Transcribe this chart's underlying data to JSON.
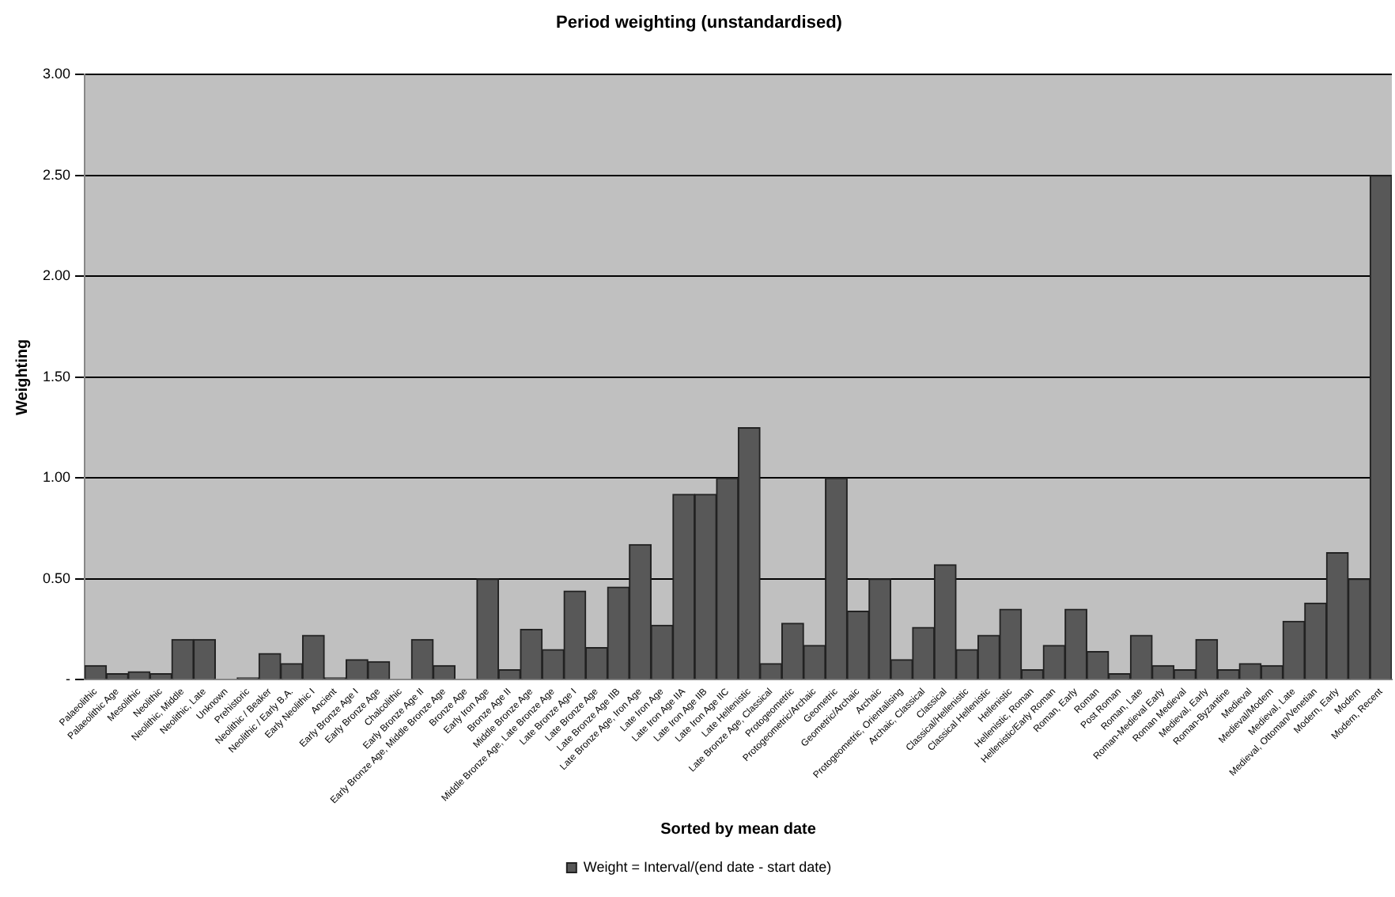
{
  "chart_data": {
    "type": "bar",
    "title": "Period weighting (unstandardised)",
    "xlabel": "Sorted by mean date",
    "ylabel": "Weighting",
    "categories": [
      "Palaeolithic",
      "Palaeolithic Age",
      "Mesolithic",
      "Neolithic",
      "Neolithic, Middle",
      "Neolithic, Late",
      "Unknown",
      "Prehistoric",
      "Neolithic / Beaker",
      "Neolithic / Early B.A.",
      "Early Neolithic I",
      "Ancient",
      "Early Bronze Age I",
      "Early Bronze Age",
      "Chalcolithic",
      "Early Bronze Age II",
      "Early Bronze Age, Middle Bronze Age",
      "Bronze Age",
      "Early Iron Age",
      "Bronze Age II",
      "Middle Bronze Age",
      "Middle Bronze Age, Late Bronze Age",
      "Late Bronze Age I",
      "Late Bronze Age",
      "Late Bronze Age IIB",
      "Late Bronze Age, Iron Age",
      "Late Iron Age",
      "Late Iron Age IIA",
      "Late Iron Age IIB",
      "Late Iron Age IIC",
      "Late Hellenistic",
      "Late Bronze Age, Classical",
      "Protogeometric",
      "Protogeometric/Archaic",
      "Geometric",
      "Geometric/Archaic",
      "Archaic",
      "Protogeometric, Orientalising",
      "Archaic, Classical",
      "Classical",
      "Classical/Hellenistic",
      "Classical Hellenistic",
      "Hellenistic",
      "Hellenistic, Roman",
      "Hellenistic/Early Roman",
      "Roman, Early",
      "Roman",
      "Post Roman",
      "Roman, Late",
      "Roman-Medieval Early",
      "Roman Medieval",
      "Medieval, Early",
      "Roman-Byzantine",
      "Medieval",
      "Medieval/Modern",
      "Medieval, Late",
      "Medieval, Ottoman/Venetian",
      "Modern, Early",
      "Modern",
      "Modern, Recent"
    ],
    "series": [
      {
        "name": "Weight = Interval/(end date - start date)",
        "color": "#585858",
        "values": [
          0.07,
          0.03,
          0.04,
          0.03,
          0.2,
          0.2,
          0,
          0.01,
          0.13,
          0.08,
          0.22,
          0.01,
          0.1,
          0.09,
          0,
          0.2,
          0.07,
          0,
          0.5,
          0.05,
          0.25,
          0.15,
          0.44,
          0.16,
          0.46,
          0.67,
          0.27,
          0.92,
          0.92,
          1.0,
          1.25,
          0.08,
          0.28,
          0.17,
          1.0,
          0.34,
          0.5,
          0.1,
          0.26,
          0.57,
          0.15,
          0.22,
          0.35,
          0.05,
          0.17,
          0.35,
          0.14,
          0.03,
          0.22,
          0.07,
          0.05,
          0.2,
          0.05,
          0.08,
          0.07,
          0.29,
          0.38,
          0.63,
          0.5,
          2.5
        ]
      }
    ],
    "ylim": [
      0,
      3
    ],
    "yticks": [
      {
        "value": 0,
        "label": "-"
      },
      {
        "value": 0.5,
        "label": "0.50"
      },
      {
        "value": 1,
        "label": "1.00"
      },
      {
        "value": 1.5,
        "label": "1.50"
      },
      {
        "value": 2,
        "label": "2.00"
      },
      {
        "value": 2.5,
        "label": "2.50"
      },
      {
        "value": 3,
        "label": "3.00"
      }
    ],
    "grid": "y",
    "legend": "bottom"
  }
}
